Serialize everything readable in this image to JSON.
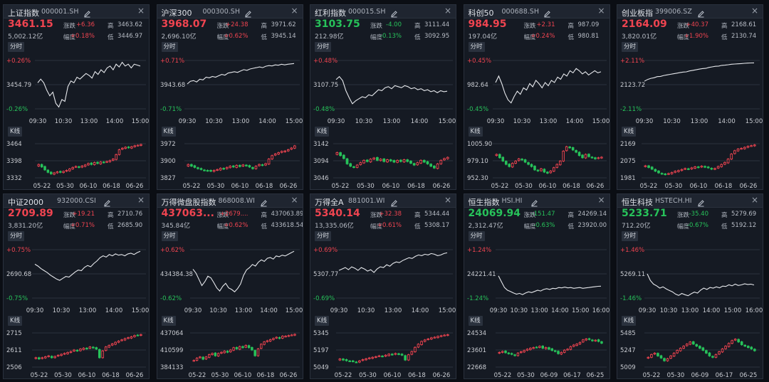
{
  "ui": {
    "intraday_tab": "分时",
    "kline_tab": "K线",
    "lbl_change": "涨跌",
    "lbl_pct": "幅度",
    "lbl_high": "高",
    "lbl_low": "低",
    "close_glyph": "×"
  },
  "colors": {
    "up": "#ef4450",
    "down": "#27c25a",
    "line": "#e6e8ec",
    "grid": "#2b313c",
    "bg": "#151a23"
  },
  "cards": [
    {
      "name": "上证指数",
      "code": "000001.SH",
      "price": "3461.15",
      "change": "+6.36",
      "pct": "+0.18%",
      "volume": "5,002.12亿",
      "high": "3463.62",
      "low": "3446.97",
      "dir": "up",
      "intraday": {
        "max_label": "+0.26%",
        "mid_label": "3454.79",
        "min_label": "-0.26%",
        "times": [
          "09:30",
          "10:30",
          "13:00",
          "14:00",
          "15:00"
        ],
        "values": [
          0.02,
          0.06,
          0.02,
          -0.06,
          -0.12,
          -0.08,
          -0.2,
          -0.24,
          -0.16,
          -0.18,
          -0.02,
          0.04,
          0.02,
          0.08,
          0.06,
          0.09,
          0.12,
          0.1,
          0.07,
          0.14,
          0.11,
          0.16,
          0.13,
          0.18,
          0.2,
          0.16,
          0.22,
          0.19,
          0.24,
          0.2,
          0.22,
          0.18,
          0.22,
          0.21,
          0.2
        ]
      },
      "kline": {
        "ticks": [
          "3464",
          "3398",
          "3332"
        ],
        "dates": [
          "05-22",
          "05-30",
          "06-10",
          "06-18",
          "06-26"
        ],
        "min": 3320,
        "max": 3470,
        "closes": [
          3380,
          3370,
          3358,
          3348,
          3342,
          3346,
          3350,
          3348,
          3352,
          3356,
          3362,
          3368,
          3372,
          3368,
          3374,
          3378,
          3384,
          3380,
          3388,
          3384,
          3390,
          3388,
          3392,
          3396,
          3402,
          3420,
          3440,
          3446,
          3450,
          3448,
          3452,
          3456,
          3458,
          3461
        ]
      }
    },
    {
      "name": "沪深300",
      "code": "000300.SH",
      "price": "3968.07",
      "change": "+24.38",
      "pct": "+0.62%",
      "volume": "2,696.10亿",
      "high": "3971.62",
      "low": "3945.14",
      "dir": "up",
      "intraday": {
        "max_label": "+0.71%",
        "mid_label": "3943.68",
        "min_label": "-0.71%",
        "times": [
          "09:30",
          "10:30",
          "13:00",
          "14:00",
          "15:00"
        ],
        "values": [
          0.02,
          0.1,
          0.12,
          0.08,
          0.16,
          0.14,
          0.22,
          0.2,
          0.24,
          0.22,
          0.26,
          0.3,
          0.28,
          0.34,
          0.36,
          0.38,
          0.36,
          0.4,
          0.44,
          0.42,
          0.46,
          0.48,
          0.5,
          0.52,
          0.5,
          0.54,
          0.56,
          0.55,
          0.58,
          0.57,
          0.6,
          0.58,
          0.6,
          0.61,
          0.62
        ]
      },
      "kline": {
        "ticks": [
          "3972",
          "3900",
          "3827"
        ],
        "dates": [
          "05-22",
          "05-30",
          "06-10",
          "06-18",
          "06-26"
        ],
        "min": 3810,
        "max": 3985,
        "closes": [
          3880,
          3872,
          3866,
          3860,
          3856,
          3852,
          3850,
          3848,
          3852,
          3856,
          3862,
          3858,
          3866,
          3872,
          3868,
          3876,
          3870,
          3878,
          3874,
          3868,
          3860,
          3872,
          3880,
          3876,
          3884,
          3906,
          3922,
          3930,
          3936,
          3942,
          3944,
          3950,
          3958,
          3968
        ]
      }
    },
    {
      "name": "红利指数",
      "code": "000015.SH",
      "price": "3103.75",
      "change": "-4.00",
      "pct": "-0.13%",
      "volume": "212.98亿",
      "high": "3111.44",
      "low": "3092.95",
      "dir": "down",
      "intraday": {
        "max_label": "+0.48%",
        "mid_label": "3107.75",
        "min_label": "-0.48%",
        "times": [
          "09:30",
          "10:30",
          "13:00",
          "14:00",
          "15:00"
        ],
        "values": [
          0.1,
          0.16,
          0.08,
          -0.12,
          -0.26,
          -0.38,
          -0.32,
          -0.28,
          -0.24,
          -0.26,
          -0.2,
          -0.22,
          -0.16,
          -0.1,
          -0.12,
          -0.06,
          -0.04,
          -0.08,
          -0.02,
          -0.04,
          -0.06,
          -0.02,
          -0.04,
          -0.08,
          -0.06,
          -0.1,
          -0.08,
          -0.12,
          -0.1,
          -0.14,
          -0.12,
          -0.16,
          -0.12,
          -0.14,
          -0.13
        ]
      },
      "kline": {
        "ticks": [
          "3142",
          "3094",
          "3046"
        ],
        "dates": [
          "05-22",
          "05-30",
          "06-10",
          "06-18",
          "06-26"
        ],
        "min": 3030,
        "max": 3155,
        "closes": [
          3120,
          3110,
          3100,
          3082,
          3074,
          3070,
          3078,
          3086,
          3094,
          3090,
          3098,
          3102,
          3094,
          3098,
          3090,
          3096,
          3092,
          3088,
          3094,
          3090,
          3096,
          3090,
          3084,
          3078,
          3086,
          3094,
          3088,
          3082,
          3074,
          3068,
          3082,
          3094,
          3100,
          3104
        ]
      }
    },
    {
      "name": "科创50",
      "code": "000688.SH",
      "price": "984.95",
      "change": "+2.31",
      "pct": "+0.24%",
      "volume": "197.04亿",
      "high": "987.09",
      "low": "980.81",
      "dir": "up",
      "intraday": {
        "max_label": "+0.45%",
        "mid_label": "982.64",
        "min_label": "-0.45%",
        "times": [
          "09:30",
          "10:30",
          "13:00",
          "14:00",
          "15:00"
        ],
        "values": [
          0.04,
          0.16,
          0.02,
          -0.16,
          -0.28,
          -0.34,
          -0.22,
          -0.12,
          -0.18,
          -0.06,
          -0.1,
          0.02,
          -0.04,
          0.08,
          0.02,
          -0.06,
          0.04,
          -0.02,
          0.08,
          0.04,
          0.14,
          0.1,
          0.2,
          0.16,
          0.26,
          0.22,
          0.3,
          0.26,
          0.2,
          0.24,
          0.18,
          0.22,
          0.26,
          0.22,
          0.24
        ]
      },
      "kline": {
        "ticks": [
          "1005.90",
          "979.10",
          "952.30"
        ],
        "dates": [
          "05-22",
          "05-30",
          "06-10",
          "06-18",
          "06-26"
        ],
        "min": 945,
        "max": 1012,
        "closes": [
          990,
          984,
          978,
          972,
          968,
          974,
          978,
          982,
          980,
          976,
          972,
          968,
          962,
          960,
          964,
          958,
          956,
          960,
          966,
          972,
          978,
          996,
          1004,
          1002,
          998,
          994,
          988,
          984,
          990,
          986,
          984,
          982,
          984,
          985
        ]
      }
    },
    {
      "name": "创业板指",
      "code": "399006.SZ",
      "price": "2164.09",
      "change": "+40.37",
      "pct": "+1.90%",
      "volume": "3,820.01亿",
      "high": "2168.61",
      "low": "2130.74",
      "dir": "up",
      "intraday": {
        "max_label": "+2.11%",
        "mid_label": "2123.72",
        "min_label": "-2.11%",
        "times": [
          "09:30",
          "10:30",
          "13:00",
          "14:00",
          "15:00"
        ],
        "values": [
          0.3,
          0.45,
          0.55,
          0.6,
          0.7,
          0.72,
          0.8,
          0.85,
          0.9,
          0.95,
          1.0,
          1.05,
          1.1,
          1.12,
          1.2,
          1.25,
          1.3,
          1.35,
          1.4,
          1.42,
          1.5,
          1.55,
          1.6,
          1.62,
          1.68,
          1.7,
          1.74,
          1.78,
          1.8,
          1.82,
          1.84,
          1.86,
          1.88,
          1.89,
          1.9
        ]
      },
      "kline": {
        "ticks": [
          "2169",
          "2075",
          "1981"
        ],
        "dates": [
          "05-22",
          "05-30",
          "06-10",
          "06-18",
          "06-26"
        ],
        "min": 1960,
        "max": 2180,
        "closes": [
          2040,
          2030,
          2020,
          2008,
          1998,
          1992,
          1988,
          1994,
          2000,
          2008,
          2012,
          2018,
          2024,
          2020,
          2028,
          2034,
          2030,
          2038,
          2032,
          2028,
          2020,
          2024,
          2036,
          2048,
          2060,
          2080,
          2110,
          2130,
          2140,
          2144,
          2150,
          2156,
          2160,
          2164
        ]
      }
    },
    {
      "name": "中证2000",
      "code": "932000.CSI",
      "price": "2709.89",
      "change": "+19.21",
      "pct": "+0.71%",
      "volume": "3,831.20亿",
      "high": "2710.76",
      "low": "2685.90",
      "dir": "up",
      "intraday": {
        "max_label": "+0.75%",
        "mid_label": "2690.68",
        "min_label": "-0.75%",
        "times": [
          "09:30",
          "10:30",
          "13:00",
          "14:00",
          "15:00"
        ],
        "values": [
          0.3,
          0.24,
          0.16,
          0.1,
          0.04,
          -0.04,
          -0.1,
          -0.16,
          -0.2,
          -0.14,
          -0.08,
          -0.1,
          -0.02,
          0.06,
          0.12,
          0.1,
          0.2,
          0.26,
          0.22,
          0.32,
          0.4,
          0.5,
          0.56,
          0.52,
          0.6,
          0.56,
          0.62,
          0.58,
          0.6,
          0.56,
          0.62,
          0.64,
          0.6,
          0.66,
          0.7
        ]
      },
      "kline": {
        "ticks": [
          "2715",
          "2611",
          "2506"
        ],
        "dates": [
          "05-22",
          "05-30",
          "06-10",
          "06-18",
          "06-26"
        ],
        "min": 2490,
        "max": 2730,
        "closes": [
          2560,
          2552,
          2560,
          2566,
          2572,
          2560,
          2568,
          2576,
          2582,
          2588,
          2594,
          2600,
          2610,
          2604,
          2616,
          2622,
          2618,
          2630,
          2624,
          2616,
          2560,
          2604,
          2630,
          2640,
          2650,
          2660,
          2668,
          2676,
          2684,
          2690,
          2696,
          2704,
          2706,
          2710
        ]
      }
    },
    {
      "name": "万得微盘股指数",
      "code": "868008.WI",
      "price": "437063...",
      "change": "+2679....",
      "pct": "+0.62%",
      "volume": "345.84亿",
      "high": "437063.89",
      "low": "433618.54",
      "dir": "up",
      "intraday": {
        "max_label": "+0.62%",
        "mid_label": "434384.38",
        "min_label": "-0.62%",
        "times": [
          "09:30",
          "10:30",
          "13:00",
          "14:00",
          "15:00"
        ],
        "values": [
          0.12,
          0.02,
          -0.14,
          -0.3,
          -0.2,
          -0.06,
          -0.1,
          -0.22,
          -0.36,
          -0.44,
          -0.32,
          -0.24,
          -0.36,
          -0.4,
          -0.46,
          -0.38,
          -0.26,
          -0.04,
          0.1,
          0.16,
          0.24,
          0.2,
          0.3,
          0.36,
          0.32,
          0.4,
          0.42,
          0.38,
          0.46,
          0.44,
          0.48,
          0.46,
          0.5,
          0.54,
          0.58
        ]
      },
      "kline": {
        "ticks": [
          "437064",
          "410599",
          "384133"
        ],
        "dates": [
          "05-22",
          "05-30",
          "06-10",
          "06-18",
          "06-26"
        ],
        "min": 378000,
        "max": 442000,
        "closes": [
          392000,
          396000,
          398000,
          394000,
          398000,
          402000,
          404000,
          400000,
          404000,
          406000,
          408000,
          406000,
          410000,
          414000,
          412000,
          416000,
          414000,
          418000,
          414000,
          410000,
          400000,
          412000,
          420000,
          424000,
          426000,
          428000,
          430000,
          432000,
          430000,
          434000,
          434000,
          435000,
          436000,
          437063
        ]
      }
    },
    {
      "name": "万得全A",
      "code": "881001.WI",
      "price": "5340.14",
      "change": "+32.38",
      "pct": "+0.61%",
      "volume": "13,335.06亿",
      "high": "5344.44",
      "low": "5308.17",
      "dir": "up",
      "intraday": {
        "max_label": "+0.69%",
        "mid_label": "5307.77",
        "min_label": "-0.69%",
        "times": [
          "09:30",
          "10:30",
          "13:00",
          "14:00",
          "15:00"
        ],
        "values": [
          0.1,
          0.14,
          0.18,
          0.12,
          0.2,
          0.16,
          0.1,
          0.18,
          0.14,
          0.08,
          0.12,
          0.04,
          0.14,
          0.2,
          0.18,
          0.26,
          0.22,
          0.3,
          0.34,
          0.32,
          0.38,
          0.42,
          0.46,
          0.44,
          0.5,
          0.54,
          0.52,
          0.56,
          0.54,
          0.58,
          0.56,
          0.52,
          0.54,
          0.58,
          0.6
        ]
      },
      "kline": {
        "ticks": [
          "5345",
          "5197",
          "5049"
        ],
        "dates": [
          "05-22",
          "05-30",
          "06-10",
          "06-18",
          "06-26"
        ],
        "min": 5020,
        "max": 5370,
        "closes": [
          5110,
          5100,
          5094,
          5090,
          5086,
          5080,
          5092,
          5104,
          5112,
          5120,
          5126,
          5132,
          5140,
          5134,
          5146,
          5156,
          5150,
          5162,
          5154,
          5146,
          5100,
          5150,
          5180,
          5220,
          5250,
          5276,
          5290,
          5300,
          5310,
          5316,
          5324,
          5330,
          5336,
          5340
        ]
      }
    },
    {
      "name": "恒生指数",
      "code": "HSI.HI",
      "price": "24069.94",
      "change": "-151.47",
      "pct": "-0.63%",
      "volume": "2,312.47亿",
      "high": "24269.14",
      "low": "23920.00",
      "dir": "down",
      "intraday": {
        "max_label": "+1.24%",
        "mid_label": "24221.41",
        "min_label": "-1.24%",
        "times": [
          "09:30",
          "10:30",
          "13:00",
          "14:00",
          "15:00",
          "16:00"
        ],
        "values": [
          -0.1,
          -0.4,
          -0.7,
          -0.84,
          -0.9,
          -0.98,
          -1.04,
          -1.0,
          -1.06,
          -0.98,
          -0.92,
          -0.96,
          -0.9,
          -0.84,
          -0.88,
          -0.8,
          -0.76,
          -0.8,
          -0.74,
          -0.76,
          -0.7,
          -0.72,
          -0.68,
          -0.72,
          -0.7,
          -0.74,
          -0.72,
          -0.7,
          -0.74,
          -0.72,
          -0.7,
          -0.68,
          -0.66,
          -0.64,
          -0.63
        ]
      },
      "kline": {
        "ticks": [
          "24534",
          "23601",
          "22668"
        ],
        "dates": [
          "05-22",
          "05-30",
          "06-09",
          "06-17",
          "06-25"
        ],
        "min": 22500,
        "max": 24800,
        "closes": [
          23500,
          23560,
          23480,
          23420,
          23380,
          23300,
          23460,
          23540,
          23620,
          23700,
          23760,
          23800,
          23820,
          23880,
          23760,
          23800,
          23700,
          23620,
          23560,
          23420,
          23500,
          23640,
          23700,
          23860,
          23960,
          24020,
          24120,
          24280,
          24340,
          24300,
          24220,
          24260,
          24180,
          24070
        ]
      }
    },
    {
      "name": "恒生科技",
      "code": "HSTECH.HI",
      "price": "5233.71",
      "change": "-35.40",
      "pct": "-0.67%",
      "volume": "712.20亿",
      "high": "5279.69",
      "low": "5192.12",
      "dir": "down",
      "intraday": {
        "max_label": "+1.46%",
        "mid_label": "5269.11",
        "min_label": "-1.46%",
        "times": [
          "09:30",
          "10:30",
          "13:00",
          "14:00",
          "15:00",
          "16:00"
        ],
        "values": [
          0.0,
          -0.4,
          -0.62,
          -0.72,
          -0.86,
          -0.78,
          -0.9,
          -1.0,
          -1.08,
          -1.22,
          -1.3,
          -1.18,
          -1.26,
          -1.32,
          -1.2,
          -1.1,
          -1.16,
          -0.98,
          -0.86,
          -0.94,
          -0.82,
          -0.86,
          -0.78,
          -0.84,
          -0.74,
          -0.76,
          -0.66,
          -0.72,
          -0.62,
          -0.7,
          -0.66,
          -0.6,
          -0.64,
          -0.62,
          -0.67
        ]
      },
      "kline": {
        "ticks": [
          "5485",
          "5247",
          "5009"
        ],
        "dates": [
          "05-22",
          "05-30",
          "06-09",
          "06-17",
          "06-25"
        ],
        "min": 4980,
        "max": 5510,
        "closes": [
          5140,
          5180,
          5200,
          5160,
          5130,
          5090,
          5120,
          5160,
          5200,
          5240,
          5270,
          5300,
          5330,
          5360,
          5330,
          5300,
          5270,
          5240,
          5200,
          5160,
          5140,
          5180,
          5220,
          5260,
          5300,
          5340,
          5380,
          5400,
          5360,
          5320,
          5300,
          5280,
          5260,
          5234
        ]
      }
    }
  ]
}
